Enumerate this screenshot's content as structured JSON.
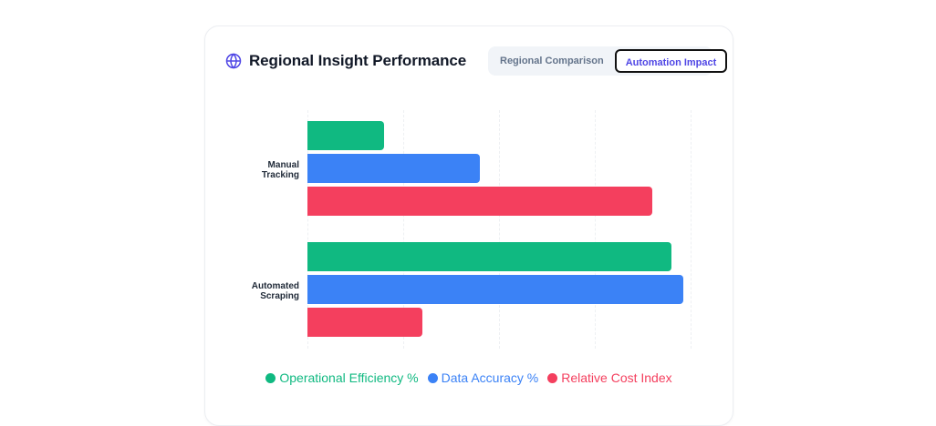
{
  "card": {
    "title": "Regional Insight Performance",
    "icon": "globe-icon",
    "accent": "#4f46e5"
  },
  "toggle": {
    "options": [
      {
        "label": "Regional Comparison",
        "active": false
      },
      {
        "label": "Automation Impact",
        "active": true
      }
    ]
  },
  "chart_data": {
    "type": "bar",
    "orientation": "horizontal",
    "title": "Regional Insight Performance",
    "categories": [
      "Manual Tracking",
      "Automated Scraping"
    ],
    "category_labels": [
      [
        "Manual",
        "Tracking"
      ],
      [
        "Automated",
        "Scraping"
      ]
    ],
    "series": [
      {
        "name": "Operational Efficiency %",
        "color": "#10b981",
        "values": [
          20,
          95
        ]
      },
      {
        "name": "Data Accuracy %",
        "color": "#3b82f6",
        "values": [
          45,
          98
        ]
      },
      {
        "name": "Relative Cost Index",
        "color": "#f43f5e",
        "values": [
          90,
          30
        ]
      }
    ],
    "xlim": [
      0,
      100
    ],
    "xlabel": "",
    "ylabel": "",
    "grid": true,
    "x_tick_labels_visible": false,
    "legend_position": "bottom"
  }
}
